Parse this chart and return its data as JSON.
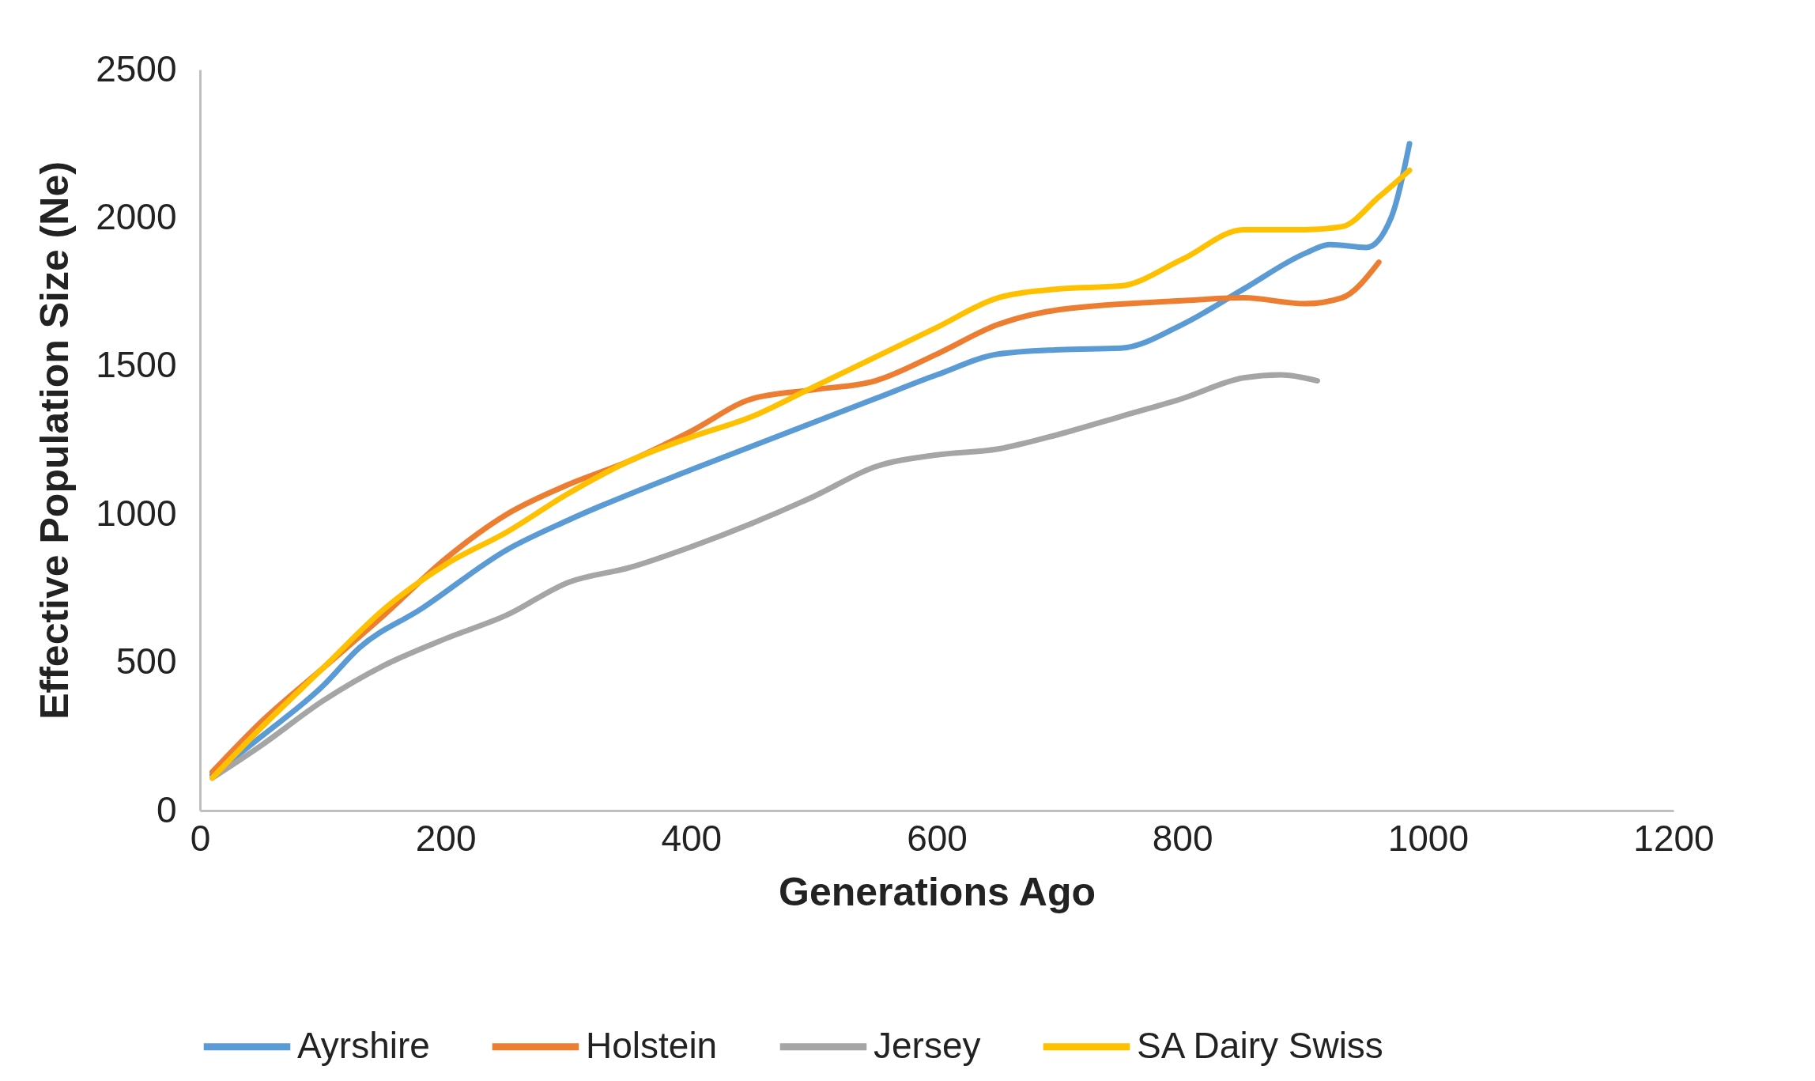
{
  "chart_data": {
    "type": "line",
    "xlabel": "Generations Ago",
    "ylabel": "Effective Population Size (Ne)",
    "xlim": [
      0,
      1200
    ],
    "xticks": [
      0,
      200,
      400,
      600,
      800,
      1000,
      1200
    ],
    "ylim": [
      0,
      2500
    ],
    "yticks": [
      0,
      500,
      1000,
      1500,
      2000,
      2500
    ],
    "grid": false,
    "legend": "bottom",
    "marker": "none",
    "line_style": "solid",
    "series": [
      {
        "name": "Ayrshire",
        "color": "#5b9bd5",
        "x": [
          10,
          50,
          100,
          130,
          180,
          250,
          300,
          400,
          450,
          500,
          550,
          600,
          650,
          700,
          750,
          800,
          850,
          900,
          920,
          950,
          970,
          985
        ],
        "values": [
          120,
          250,
          420,
          550,
          680,
          880,
          980,
          1150,
          1230,
          1310,
          1390,
          1470,
          1540,
          1555,
          1560,
          1640,
          1760,
          1880,
          1910,
          1900,
          2000,
          2250
        ]
      },
      {
        "name": "Holstein",
        "color": "#ed7d31",
        "x": [
          10,
          50,
          100,
          150,
          200,
          250,
          300,
          350,
          400,
          450,
          500,
          550,
          600,
          650,
          700,
          800,
          850,
          900,
          930,
          960
        ],
        "values": [
          130,
          300,
          480,
          660,
          850,
          1000,
          1100,
          1180,
          1280,
          1390,
          1420,
          1450,
          1540,
          1640,
          1690,
          1720,
          1730,
          1710,
          1730,
          1850
        ]
      },
      {
        "name": "Jersey",
        "color": "#a5a5a5",
        "x": [
          10,
          50,
          100,
          150,
          200,
          250,
          300,
          350,
          400,
          450,
          500,
          550,
          600,
          650,
          700,
          750,
          800,
          850,
          880,
          910
        ],
        "values": [
          110,
          220,
          370,
          490,
          580,
          660,
          770,
          820,
          890,
          970,
          1060,
          1160,
          1200,
          1220,
          1270,
          1330,
          1390,
          1460,
          1470,
          1450
        ]
      },
      {
        "name": "SA Dairy Swiss",
        "color": "#ffc000",
        "x": [
          10,
          50,
          100,
          150,
          200,
          250,
          300,
          350,
          400,
          450,
          500,
          550,
          600,
          650,
          700,
          750,
          800,
          850,
          900,
          930,
          960,
          985
        ],
        "values": [
          110,
          280,
          480,
          680,
          830,
          940,
          1070,
          1180,
          1260,
          1330,
          1430,
          1530,
          1630,
          1730,
          1760,
          1770,
          1860,
          1960,
          1960,
          1970,
          2070,
          2160
        ]
      }
    ]
  }
}
